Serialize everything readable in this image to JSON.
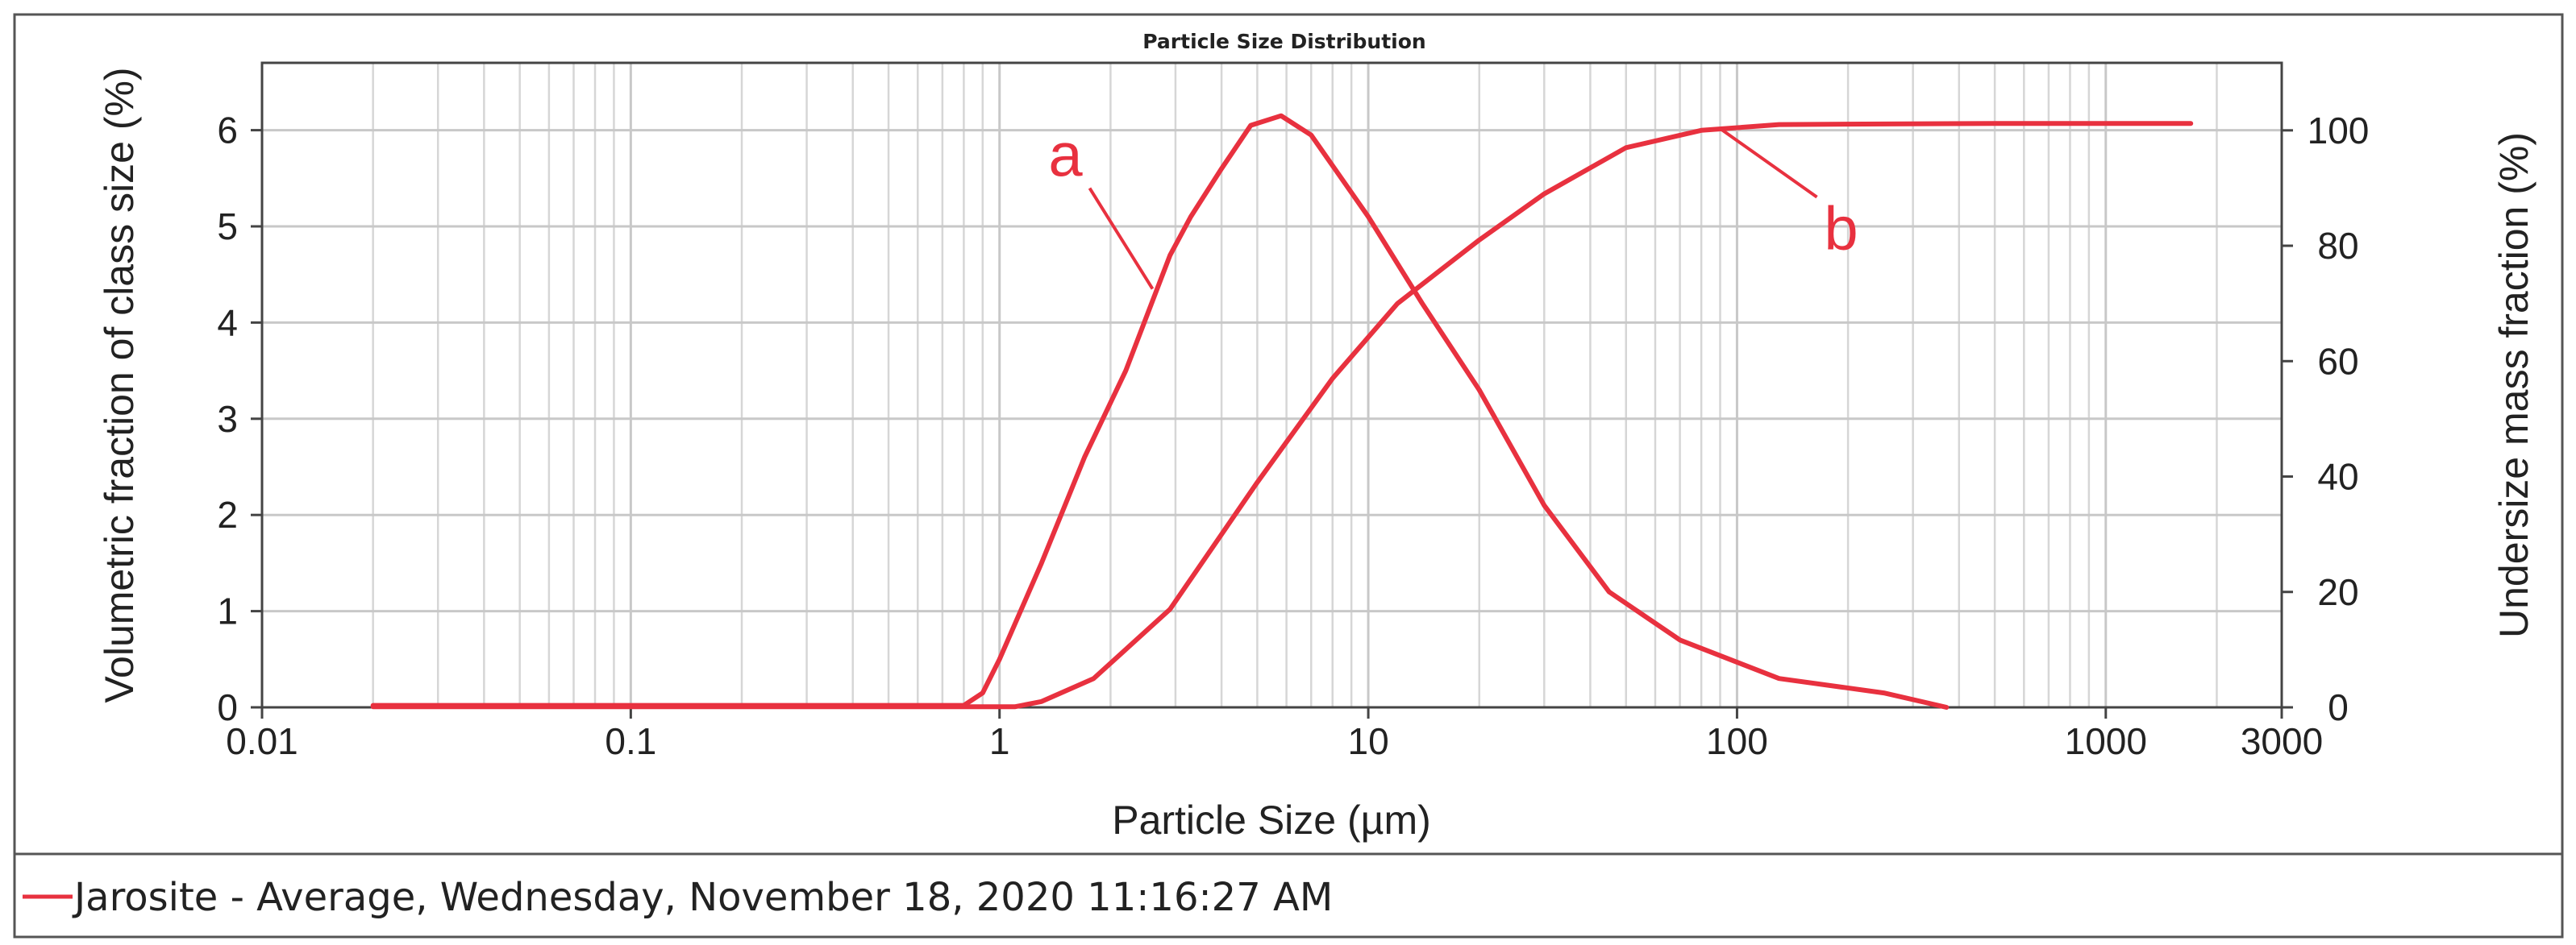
{
  "chart_data": {
    "type": "line",
    "title": "Particle Size Distribution",
    "xlabel": "Particle Size (µm)",
    "ylabel_left": "Volumetric fraction of class size (%)",
    "ylabel_right": "Undersize mass fraction (%)",
    "xscale": "log",
    "xlim": [
      0.01,
      3000
    ],
    "ylim_left": [
      0,
      6.7
    ],
    "ylim_right": [
      0,
      111.7
    ],
    "x_ticks": [
      0.01,
      0.1,
      1,
      10,
      100,
      1000,
      3000
    ],
    "x_tick_labels": [
      "0.01",
      "0.1",
      "1",
      "10",
      "100",
      "1000",
      "3000"
    ],
    "y_left_ticks": [
      0,
      1,
      2,
      3,
      4,
      5,
      6
    ],
    "y_left_tick_labels": [
      "0",
      "1",
      "2",
      "3",
      "4",
      "5",
      "6"
    ],
    "y_right_ticks": [
      0,
      20,
      40,
      60,
      80,
      100
    ],
    "y_right_tick_labels": [
      "0",
      "20",
      "40",
      "60",
      "80",
      "100"
    ],
    "grid": true,
    "legend_position": "bottom",
    "color": "#e8313f",
    "series": [
      {
        "name": "Jarosite - Average, Wednesday, November 18, 2020 11:16:27 AM",
        "axis": "left",
        "annotation": "a",
        "points": [
          [
            0.02,
            0.02
          ],
          [
            0.8,
            0.02
          ],
          [
            0.9,
            0.15
          ],
          [
            1.0,
            0.5
          ],
          [
            1.3,
            1.5
          ],
          [
            1.7,
            2.6
          ],
          [
            2.2,
            3.5
          ],
          [
            2.9,
            4.7
          ],
          [
            3.3,
            5.1
          ],
          [
            4.0,
            5.6
          ],
          [
            4.8,
            6.05
          ],
          [
            5.8,
            6.15
          ],
          [
            7.0,
            5.95
          ],
          [
            10.0,
            5.1
          ],
          [
            14.0,
            4.2
          ],
          [
            20.0,
            3.3
          ],
          [
            30.0,
            2.1
          ],
          [
            45.0,
            1.2
          ],
          [
            70.0,
            0.7
          ],
          [
            130.0,
            0.3
          ],
          [
            250.0,
            0.15
          ],
          [
            370.0,
            0.0
          ]
        ]
      },
      {
        "axis": "right",
        "annotation": "b",
        "points": [
          [
            0.02,
            0.1
          ],
          [
            1.1,
            0.1
          ],
          [
            1.3,
            1.0
          ],
          [
            1.8,
            5.0
          ],
          [
            2.9,
            17.0
          ],
          [
            5.0,
            39.0
          ],
          [
            8.0,
            57.0
          ],
          [
            12.0,
            70.0
          ],
          [
            20.0,
            81.0
          ],
          [
            30.0,
            89.0
          ],
          [
            50.0,
            97.0
          ],
          [
            80.0,
            100.0
          ],
          [
            130.0,
            101.0
          ],
          [
            500.0,
            101.2
          ],
          [
            1700.0,
            101.2
          ]
        ]
      }
    ],
    "annotations": [
      {
        "label": "a",
        "series": 0
      },
      {
        "label": "b",
        "series": 1
      }
    ]
  }
}
